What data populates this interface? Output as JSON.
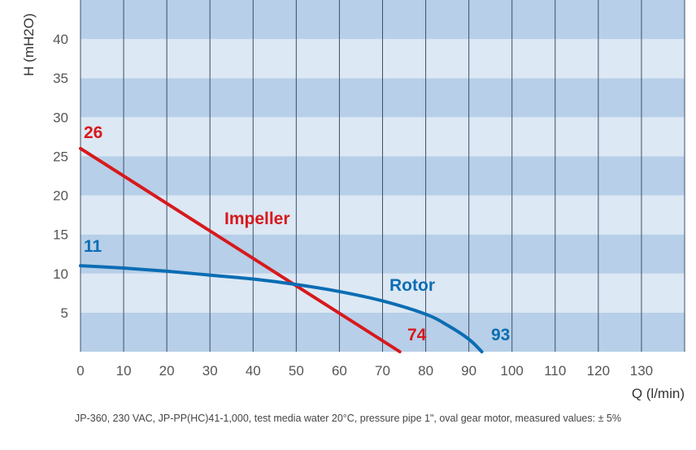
{
  "chart_data": {
    "type": "line",
    "xlabel": "Q (l/min)",
    "ylabel": "H (mH2O)",
    "xlim": [
      0,
      140
    ],
    "ylim": [
      0,
      45
    ],
    "x_ticks": [
      0,
      10,
      20,
      30,
      40,
      50,
      60,
      70,
      80,
      90,
      100,
      110,
      120,
      130
    ],
    "y_ticks": [
      5,
      10,
      15,
      20,
      25,
      30,
      35,
      40
    ],
    "grid": true,
    "series": [
      {
        "name": "Impeller",
        "color": "#d7191c",
        "x": [
          0,
          74
        ],
        "y": [
          26,
          0
        ],
        "start_label": "26",
        "end_label": "74"
      },
      {
        "name": "Rotor",
        "color": "#0b6db3",
        "x": [
          0,
          10,
          20,
          30,
          40,
          50,
          60,
          70,
          80,
          85,
          90,
          93
        ],
        "y": [
          11,
          10.7,
          10.3,
          9.8,
          9.3,
          8.6,
          7.7,
          6.5,
          4.8,
          3.4,
          1.6,
          0
        ],
        "start_label": "11",
        "end_label": "93"
      }
    ]
  },
  "footnote": "JP-360, 230 VAC, JP-PP(HC)41-1,000, test media water 20°C, pressure pipe 1\", oval gear motor, measured values: ± 5%"
}
